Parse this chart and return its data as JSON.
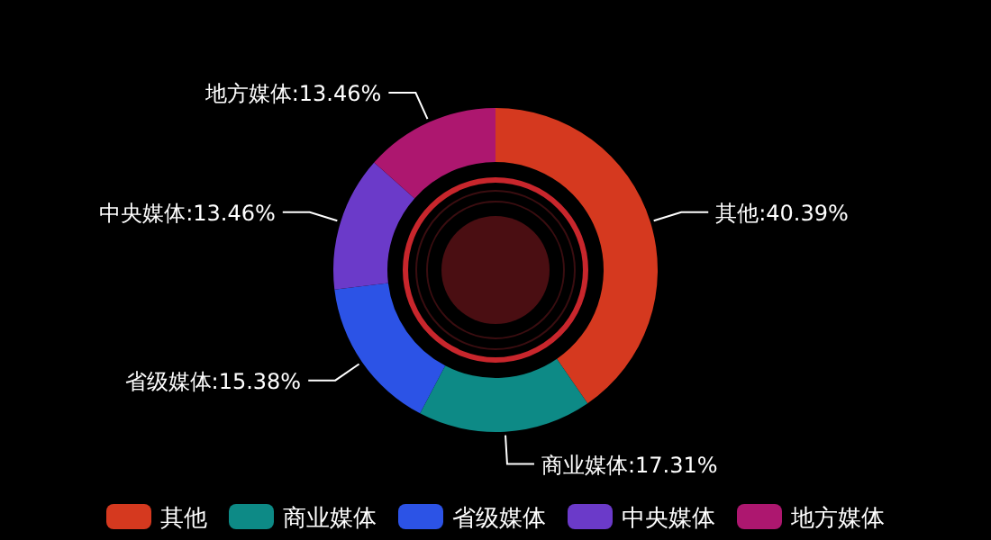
{
  "chart_data": {
    "type": "donut",
    "categories": [
      "其他",
      "商业媒体",
      "省级媒体",
      "中央媒体",
      "地方媒体"
    ],
    "values": [
      40.39,
      17.31,
      15.38,
      13.46,
      13.46
    ],
    "colors": [
      "#d5391f",
      "#0d8a86",
      "#2c53e6",
      "#6b3ac9",
      "#ad176f"
    ],
    "value_labels": [
      "其他:40.39%",
      "商业媒体:17.31%",
      "省级媒体:15.38%",
      "中央媒体:13.46%",
      "地方媒体:13.46%"
    ],
    "legend": "bottom"
  }
}
